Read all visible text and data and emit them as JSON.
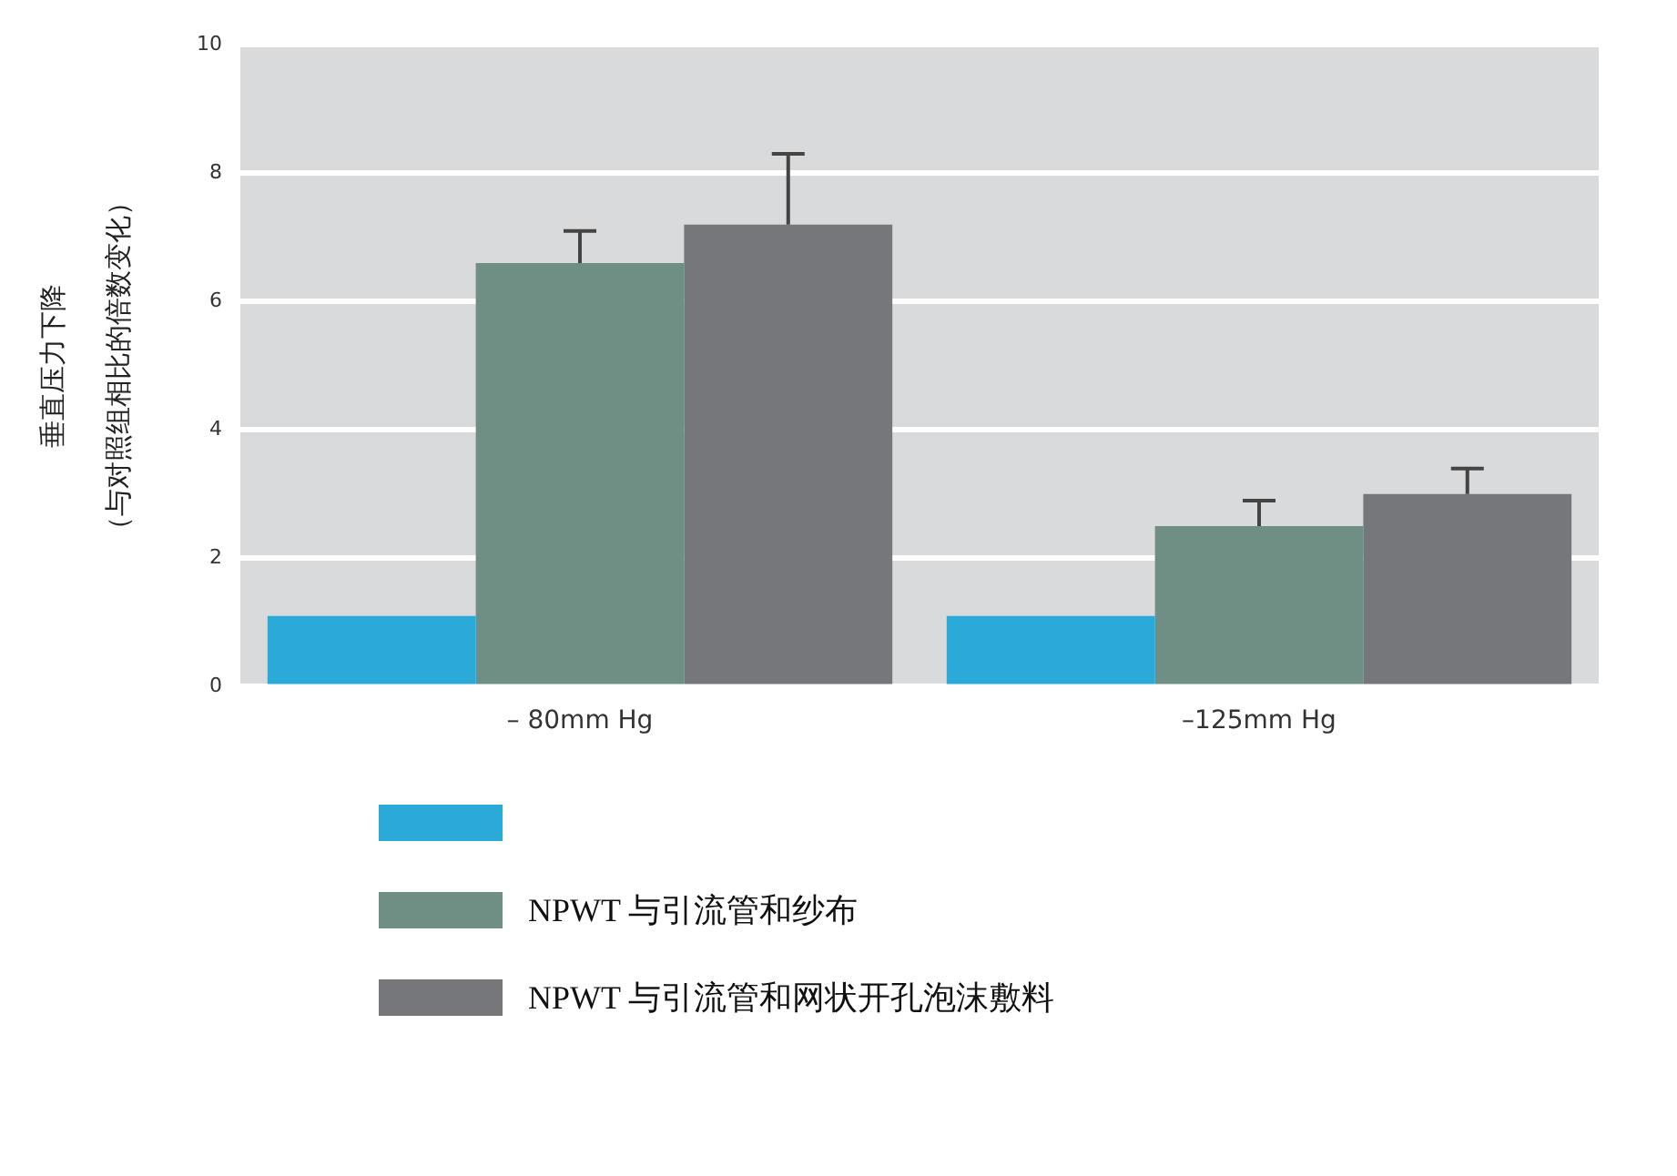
{
  "chart_data": {
    "type": "bar",
    "categories": [
      "– 80mm Hg",
      "–125mm Hg"
    ],
    "ylabel": "垂直压力下降（与对照组相比的倍数变化）",
    "ylim": [
      0,
      10
    ],
    "yticks": [
      0,
      2,
      4,
      6,
      8,
      10
    ],
    "grid": "y",
    "legend": "bottom",
    "series": [
      {
        "color": "#2aaad8",
        "values": [
          1.1,
          1.1
        ],
        "errors": [
          null,
          null
        ]
      },
      {
        "name": "NPWT 与引流管和纱布",
        "color": "#6f8f84",
        "values": [
          6.6,
          2.5
        ],
        "errors": [
          [
            6.6,
            7.1
          ],
          [
            2.5,
            2.9
          ]
        ]
      },
      {
        "name": "NPWT 与引流管和网状开孔泡沫敷料",
        "color": "#76777b",
        "values": [
          7.2,
          3.0
        ],
        "errors": [
          [
            7.2,
            8.3
          ],
          [
            3.0,
            3.4
          ]
        ]
      }
    ]
  }
}
